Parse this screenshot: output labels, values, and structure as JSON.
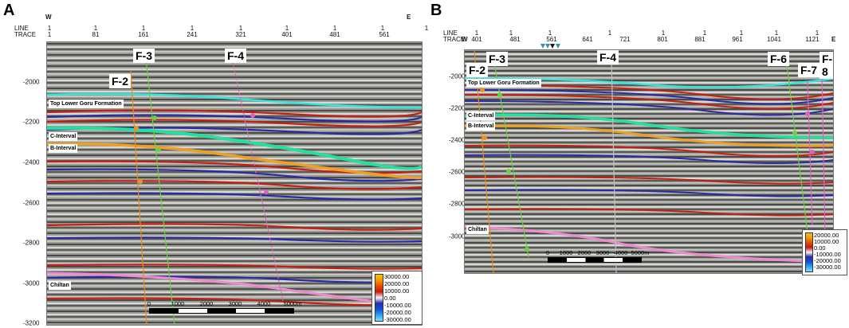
{
  "panels": [
    {
      "letter": "A",
      "west": "W",
      "east": "E",
      "line_label": "LINE",
      "trace_label": "TRACE",
      "line_ticks": [
        "1",
        "1",
        "1",
        "1",
        "1",
        "1",
        "1",
        "1",
        "1"
      ],
      "trace_ticks": [
        "1",
        "81",
        "161",
        "241",
        "321",
        "401",
        "481",
        "561"
      ],
      "depth_ticks": [
        "-2000",
        "-2200",
        "-2400",
        "-2600",
        "-2800",
        "-3000",
        "-3200"
      ],
      "faults": [
        "F-2",
        "F-3",
        "F-4"
      ],
      "horizons": [
        "Top Lower Goru Formation",
        "C-Interval",
        "B-Interval",
        "Chiltan"
      ],
      "legend": [
        "30000.00",
        "20000.00",
        "10000.00",
        "0.00",
        "-10000.00",
        "-20000.00",
        "-30000.00"
      ],
      "scale": [
        "0",
        "1000",
        "2000",
        "3000",
        "4000",
        "5000m"
      ]
    },
    {
      "letter": "B",
      "west": "W",
      "east": "E",
      "line_label": "LINE",
      "trace_label": "TRACE",
      "line_ticks": [
        "1",
        "1",
        "1",
        "1",
        "1",
        "1",
        "1",
        "1",
        "1"
      ],
      "trace_ticks": [
        "401",
        "481",
        "561",
        "641",
        "721",
        "801",
        "881",
        "961",
        "1041",
        "1121"
      ],
      "depth_ticks": [
        "-2000",
        "-2200",
        "-2400",
        "-2600",
        "-2800",
        "-3000"
      ],
      "faults": [
        "F-2",
        "F-3",
        "F-4",
        "F-6",
        "F-7",
        "F-8"
      ],
      "horizons": [
        "Top Lower Goru Formation",
        "C-Interval",
        "B-Interval",
        "Chiltan"
      ],
      "legend": [
        "20000.00",
        "10000.00",
        "0.00",
        "-10000.00",
        "-20000.00",
        "-30000.00"
      ],
      "scale": [
        "0",
        "1000",
        "2000",
        "3000",
        "4000",
        "5000m"
      ]
    }
  ],
  "colors": {
    "top_lower_goru": "#2ee8e0",
    "c_interval": "#22e0a0",
    "b_interval": "#f0a020",
    "chiltan": "#f08ad0",
    "fault_green": "#6ad040",
    "fault_pink": "#e060c0"
  }
}
